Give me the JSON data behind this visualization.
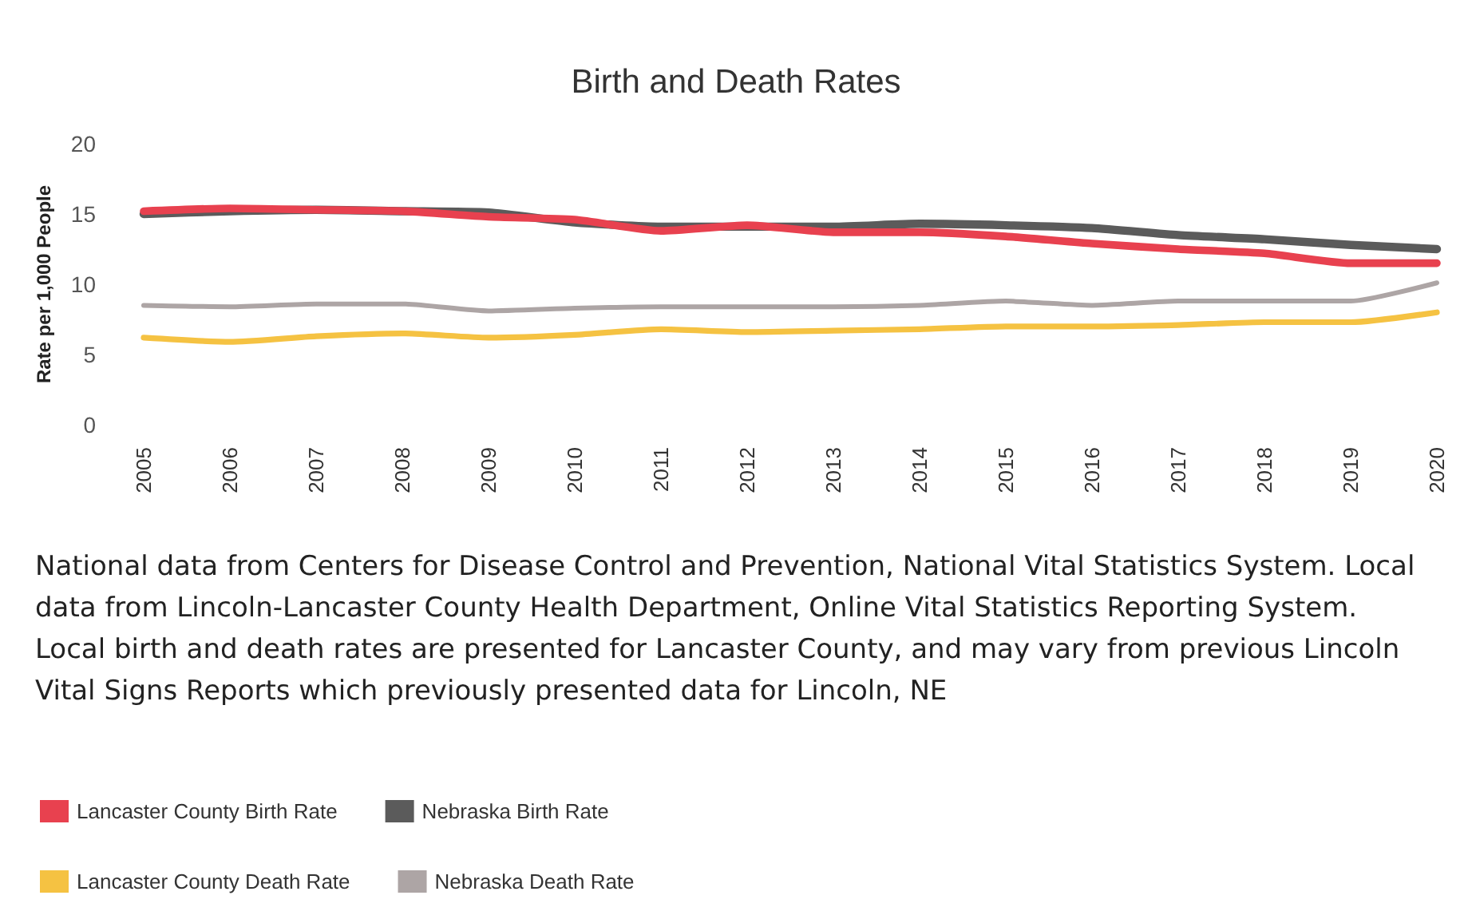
{
  "chart_data": {
    "type": "line",
    "title": "Birth and Death Rates",
    "ylabel": "Rate per 1,000 People",
    "categories": [
      "2005",
      "2006",
      "2007",
      "2008",
      "2009",
      "2010",
      "2011",
      "2012",
      "2013",
      "2014",
      "2015",
      "2016",
      "2017",
      "2018",
      "2019",
      "2020"
    ],
    "series": [
      {
        "name": "Lancaster County Birth Rate",
        "color": "#e8414f",
        "values": [
          15.2,
          15.4,
          15.3,
          15.2,
          14.8,
          14.6,
          13.8,
          14.2,
          13.7,
          13.7,
          13.4,
          12.9,
          12.5,
          12.2,
          11.5,
          11.5
        ]
      },
      {
        "name": "Nebraska Birth Rate",
        "color": "#5b5b5b",
        "values": [
          15.0,
          15.2,
          15.3,
          15.2,
          15.1,
          14.4,
          14.1,
          14.1,
          14.1,
          14.3,
          14.2,
          14.0,
          13.5,
          13.2,
          12.8,
          12.5
        ]
      },
      {
        "name": "Lancaster County Death Rate",
        "color": "#f5c242",
        "values": [
          6.2,
          5.9,
          6.3,
          6.5,
          6.2,
          6.4,
          6.8,
          6.6,
          6.7,
          6.8,
          7.0,
          7.0,
          7.1,
          7.3,
          7.3,
          8.0
        ]
      },
      {
        "name": "Nebraska Death Rate",
        "color": "#ada5a5",
        "values": [
          8.5,
          8.4,
          8.6,
          8.6,
          8.1,
          8.3,
          8.4,
          8.4,
          8.4,
          8.5,
          8.8,
          8.5,
          8.8,
          8.8,
          8.8,
          10.1
        ]
      }
    ],
    "ylim": [
      0,
      20
    ],
    "yticks": [
      0,
      5,
      10,
      15,
      20
    ],
    "grid": false,
    "legend": "bottom",
    "marker": "none",
    "line_style": "solid",
    "annotations": [
      "National data from Centers for Disease Control and Prevention, National Vital Statistics System. Local data from Lincoln-Lancaster County Health Department, Online Vital Statistics Reporting System.",
      "Local birth and death rates are presented for Lancaster County, and may vary from previous Lincoln Vital Signs Reports which previously presented data for Lincoln, NE"
    ]
  }
}
